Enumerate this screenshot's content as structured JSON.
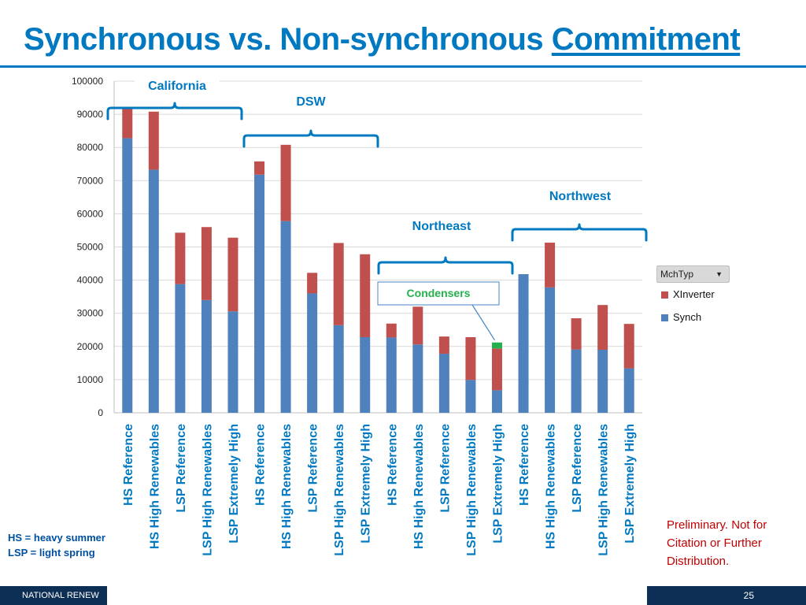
{
  "slide": {
    "title_main": "Synchronous vs. Non-synchronous ",
    "title_emph": "Commitment",
    "legend_filter_label": "MchTyp",
    "abbreviations": [
      "HS = heavy summer",
      "LSP = light spring"
    ],
    "disclaimer": "Preliminary.  Not for Citation or Further Distribution.",
    "footer_org": "NATIONAL RENEW",
    "page_number": "25"
  },
  "colors": {
    "title": "#0079C1",
    "synch": "#4F81BD",
    "xinverter": "#C0504D",
    "condensers": "#22B14C",
    "annotation": "#0079C1",
    "footer_bg": "#0E2F55",
    "disclaimer": "#C00000"
  },
  "chart_data": {
    "type": "bar",
    "stacked": true,
    "categories": [
      "HS Reference",
      "HS High Renewables",
      "LSP Reference",
      "LSP High Renewables",
      "LSP Extremely High",
      "HS Reference",
      "HS High Renewables",
      "LSP Reference",
      "LSP High Renewables",
      "LSP Extremely High",
      "HS Reference",
      "HS High Renewables",
      "LSP Reference",
      "LSP High Renewables",
      "LSP Extremely High",
      "HS Reference",
      "HS High Renewables",
      "LSP Reference",
      "LSP High Renewables",
      "LSP Extremely High"
    ],
    "series": [
      {
        "name": "Synch",
        "values": [
          82800,
          73300,
          38800,
          34000,
          30600,
          71800,
          57800,
          36000,
          26400,
          22800,
          22700,
          20600,
          17800,
          9900,
          6800,
          41800,
          37800,
          19100,
          19000,
          13400
        ]
      },
      {
        "name": "XInverter",
        "values": [
          9300,
          17500,
          15500,
          22000,
          22200,
          4000,
          23000,
          6200,
          24800,
          25000,
          4200,
          11400,
          5200,
          12900,
          12600,
          0,
          13500,
          9400,
          13500,
          13400
        ]
      },
      {
        "name": "Condensers",
        "values": [
          0,
          0,
          0,
          0,
          0,
          0,
          0,
          0,
          0,
          0,
          0,
          0,
          0,
          0,
          1800,
          0,
          0,
          0,
          0,
          0
        ]
      }
    ],
    "legend_entries": [
      "XInverter",
      "Synch"
    ],
    "yticks": [
      0,
      10000,
      20000,
      30000,
      40000,
      50000,
      60000,
      70000,
      80000,
      90000,
      100000
    ],
    "ylim": [
      0,
      100000
    ],
    "grid": true,
    "legend_position": "right",
    "groups": [
      {
        "label": "California",
        "from": 0,
        "to": 4
      },
      {
        "label": "DSW",
        "from": 5,
        "to": 9
      },
      {
        "label": "Northeast",
        "from": 10,
        "to": 14
      },
      {
        "label": "Northwest",
        "from": 15,
        "to": 19
      }
    ],
    "callout": {
      "label": "Condensers",
      "target": 14
    }
  }
}
